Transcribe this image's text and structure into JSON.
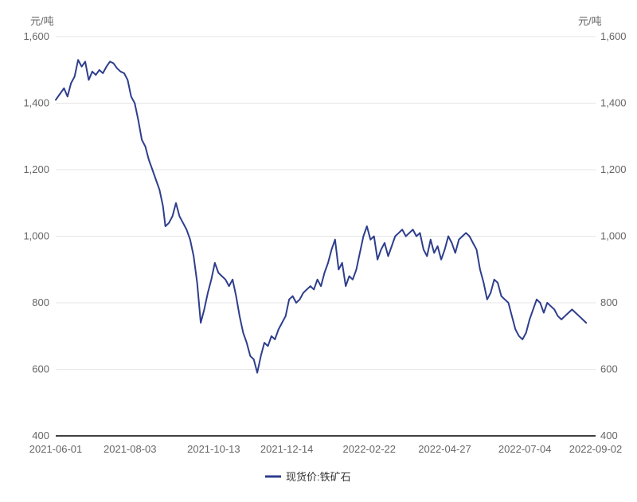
{
  "chart_data": {
    "type": "line",
    "unit_left": "元/吨",
    "unit_right": "元/吨",
    "ylim": [
      400,
      1600
    ],
    "y_ticks": [
      400,
      600,
      800,
      1000,
      1200,
      1400,
      1600
    ],
    "y_tick_labels": [
      "400",
      "600",
      "800",
      "1,000",
      "1,200",
      "1,400",
      "1,600"
    ],
    "x_range": [
      "2021-06-01",
      "2022-09-02"
    ],
    "x_ticks": [
      "2021-06-01",
      "2021-08-03",
      "2021-10-13",
      "2021-12-14",
      "2022-02-22",
      "2022-04-27",
      "2022-07-04",
      "2022-09-02"
    ],
    "grid": "horizontal",
    "legend_position": "bottom",
    "series": [
      {
        "name": "现货价:铁矿石",
        "color": "#2e3e8c",
        "points": [
          [
            "2021-06-01",
            1410
          ],
          [
            "2021-06-05",
            1430
          ],
          [
            "2021-06-08",
            1445
          ],
          [
            "2021-06-11",
            1420
          ],
          [
            "2021-06-14",
            1460
          ],
          [
            "2021-06-17",
            1480
          ],
          [
            "2021-06-20",
            1530
          ],
          [
            "2021-06-23",
            1510
          ],
          [
            "2021-06-26",
            1525
          ],
          [
            "2021-06-29",
            1470
          ],
          [
            "2021-07-02",
            1495
          ],
          [
            "2021-07-05",
            1485
          ],
          [
            "2021-07-08",
            1500
          ],
          [
            "2021-07-11",
            1490
          ],
          [
            "2021-07-14",
            1510
          ],
          [
            "2021-07-17",
            1525
          ],
          [
            "2021-07-20",
            1520
          ],
          [
            "2021-07-23",
            1505
          ],
          [
            "2021-07-26",
            1495
          ],
          [
            "2021-07-29",
            1490
          ],
          [
            "2021-08-01",
            1470
          ],
          [
            "2021-08-04",
            1420
          ],
          [
            "2021-08-07",
            1400
          ],
          [
            "2021-08-10",
            1350
          ],
          [
            "2021-08-13",
            1290
          ],
          [
            "2021-08-16",
            1270
          ],
          [
            "2021-08-19",
            1230
          ],
          [
            "2021-08-22",
            1200
          ],
          [
            "2021-08-25",
            1170
          ],
          [
            "2021-08-28",
            1140
          ],
          [
            "2021-08-31",
            1090
          ],
          [
            "2021-09-02",
            1030
          ],
          [
            "2021-09-05",
            1040
          ],
          [
            "2021-09-08",
            1060
          ],
          [
            "2021-09-11",
            1100
          ],
          [
            "2021-09-14",
            1060
          ],
          [
            "2021-09-17",
            1040
          ],
          [
            "2021-09-20",
            1020
          ],
          [
            "2021-09-23",
            990
          ],
          [
            "2021-09-26",
            940
          ],
          [
            "2021-09-29",
            860
          ],
          [
            "2021-10-02",
            740
          ],
          [
            "2021-10-05",
            780
          ],
          [
            "2021-10-08",
            830
          ],
          [
            "2021-10-11",
            870
          ],
          [
            "2021-10-14",
            920
          ],
          [
            "2021-10-17",
            890
          ],
          [
            "2021-10-20",
            880
          ],
          [
            "2021-10-23",
            870
          ],
          [
            "2021-10-26",
            850
          ],
          [
            "2021-10-29",
            870
          ],
          [
            "2021-11-01",
            820
          ],
          [
            "2021-11-04",
            760
          ],
          [
            "2021-11-07",
            710
          ],
          [
            "2021-11-10",
            680
          ],
          [
            "2021-11-13",
            640
          ],
          [
            "2021-11-16",
            630
          ],
          [
            "2021-11-19",
            590
          ],
          [
            "2021-11-22",
            640
          ],
          [
            "2021-11-25",
            680
          ],
          [
            "2021-11-28",
            670
          ],
          [
            "2021-12-01",
            700
          ],
          [
            "2021-12-04",
            690
          ],
          [
            "2021-12-07",
            720
          ],
          [
            "2021-12-10",
            740
          ],
          [
            "2021-12-13",
            760
          ],
          [
            "2021-12-16",
            810
          ],
          [
            "2021-12-19",
            820
          ],
          [
            "2021-12-22",
            800
          ],
          [
            "2021-12-25",
            810
          ],
          [
            "2021-12-28",
            830
          ],
          [
            "2021-12-31",
            840
          ],
          [
            "2022-01-03",
            850
          ],
          [
            "2022-01-06",
            840
          ],
          [
            "2022-01-09",
            870
          ],
          [
            "2022-01-12",
            850
          ],
          [
            "2022-01-15",
            890
          ],
          [
            "2022-01-18",
            920
          ],
          [
            "2022-01-21",
            960
          ],
          [
            "2022-01-24",
            990
          ],
          [
            "2022-01-27",
            900
          ],
          [
            "2022-01-30",
            920
          ],
          [
            "2022-02-02",
            850
          ],
          [
            "2022-02-05",
            880
          ],
          [
            "2022-02-08",
            870
          ],
          [
            "2022-02-11",
            900
          ],
          [
            "2022-02-14",
            950
          ],
          [
            "2022-02-17",
            1000
          ],
          [
            "2022-02-20",
            1030
          ],
          [
            "2022-02-23",
            990
          ],
          [
            "2022-02-26",
            1000
          ],
          [
            "2022-03-01",
            930
          ],
          [
            "2022-03-04",
            960
          ],
          [
            "2022-03-07",
            980
          ],
          [
            "2022-03-10",
            940
          ],
          [
            "2022-03-13",
            970
          ],
          [
            "2022-03-16",
            1000
          ],
          [
            "2022-03-19",
            1010
          ],
          [
            "2022-03-22",
            1020
          ],
          [
            "2022-03-25",
            1000
          ],
          [
            "2022-03-28",
            1010
          ],
          [
            "2022-03-31",
            1020
          ],
          [
            "2022-04-03",
            1000
          ],
          [
            "2022-04-06",
            1010
          ],
          [
            "2022-04-09",
            960
          ],
          [
            "2022-04-12",
            940
          ],
          [
            "2022-04-15",
            990
          ],
          [
            "2022-04-18",
            950
          ],
          [
            "2022-04-21",
            970
          ],
          [
            "2022-04-24",
            930
          ],
          [
            "2022-04-27",
            960
          ],
          [
            "2022-04-30",
            1000
          ],
          [
            "2022-05-03",
            980
          ],
          [
            "2022-05-06",
            950
          ],
          [
            "2022-05-09",
            990
          ],
          [
            "2022-05-12",
            1000
          ],
          [
            "2022-05-15",
            1010
          ],
          [
            "2022-05-18",
            1000
          ],
          [
            "2022-05-21",
            980
          ],
          [
            "2022-05-24",
            960
          ],
          [
            "2022-05-27",
            900
          ],
          [
            "2022-05-30",
            860
          ],
          [
            "2022-06-02",
            810
          ],
          [
            "2022-06-05",
            830
          ],
          [
            "2022-06-08",
            870
          ],
          [
            "2022-06-11",
            860
          ],
          [
            "2022-06-14",
            820
          ],
          [
            "2022-06-17",
            810
          ],
          [
            "2022-06-20",
            800
          ],
          [
            "2022-06-23",
            760
          ],
          [
            "2022-06-26",
            720
          ],
          [
            "2022-06-29",
            700
          ],
          [
            "2022-07-02",
            690
          ],
          [
            "2022-07-05",
            710
          ],
          [
            "2022-07-08",
            750
          ],
          [
            "2022-07-11",
            780
          ],
          [
            "2022-07-14",
            810
          ],
          [
            "2022-07-17",
            800
          ],
          [
            "2022-07-20",
            770
          ],
          [
            "2022-07-23",
            800
          ],
          [
            "2022-07-26",
            790
          ],
          [
            "2022-07-29",
            780
          ],
          [
            "2022-08-01",
            760
          ],
          [
            "2022-08-04",
            750
          ],
          [
            "2022-08-07",
            760
          ],
          [
            "2022-08-10",
            770
          ],
          [
            "2022-08-13",
            780
          ],
          [
            "2022-08-16",
            770
          ],
          [
            "2022-08-19",
            760
          ],
          [
            "2022-08-22",
            750
          ],
          [
            "2022-08-25",
            740
          ]
        ]
      }
    ]
  }
}
